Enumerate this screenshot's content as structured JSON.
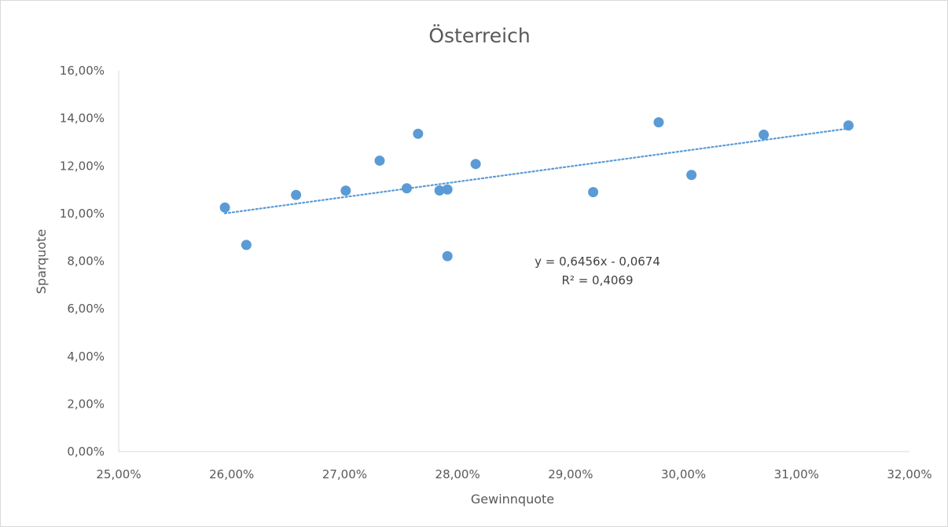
{
  "chart_data": {
    "type": "scatter",
    "title": "Österreich",
    "xlabel": "Gewinnquote",
    "ylabel": "Sparquote",
    "xlim": [
      0.25,
      0.32
    ],
    "ylim": [
      0.0,
      0.16
    ],
    "x_ticks": [
      "25,00%",
      "26,00%",
      "27,00%",
      "28,00%",
      "29,00%",
      "30,00%",
      "31,00%",
      "32,00%"
    ],
    "y_ticks": [
      "0,00%",
      "2,00%",
      "4,00%",
      "6,00%",
      "8,00%",
      "10,00%",
      "12,00%",
      "14,00%",
      "16,00%"
    ],
    "grid": false,
    "legend": "none",
    "marker_color": "#5b9bd5",
    "trendline_color": "#5b9bd5",
    "series": [
      {
        "points": [
          [
            0.2594,
            0.1025
          ],
          [
            0.2613,
            0.0868
          ],
          [
            0.2657,
            0.1078
          ],
          [
            0.2701,
            0.1096
          ],
          [
            0.2731,
            0.1222
          ],
          [
            0.2755,
            0.1106
          ],
          [
            0.2765,
            0.1335
          ],
          [
            0.2784,
            0.1097
          ],
          [
            0.2791,
            0.1101
          ],
          [
            0.2791,
            0.0821
          ],
          [
            0.2816,
            0.1208
          ],
          [
            0.292,
            0.109
          ],
          [
            0.2978,
            0.1383
          ],
          [
            0.3007,
            0.1162
          ],
          [
            0.3071,
            0.1331
          ],
          [
            0.3146,
            0.137
          ]
        ]
      }
    ],
    "trendline": {
      "slope": 0.6456,
      "intercept": -0.0674,
      "x_range": [
        0.2594,
        0.3146
      ],
      "equation_label": "y = 0,6456x - 0,0674",
      "r2_label": "R² = 0,4069"
    }
  }
}
